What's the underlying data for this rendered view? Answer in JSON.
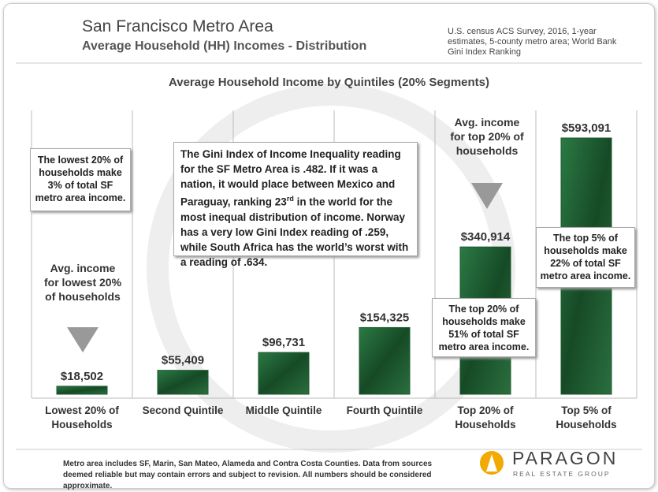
{
  "chart_data": {
    "type": "bar",
    "title": "San Francisco Metro Area",
    "subtitle": "Average Household (HH) Incomes - Distribution",
    "source": "U.S. census ACS Survey, 2016, 1-year estimates, 5-county metro area; World Bank Gini Index Ranking",
    "chart_title": "Average Household Income by Quintiles (20% Segments)",
    "categories": [
      "Lowest 20% of Households",
      "Second Quintile",
      "Middle Quintile",
      "Fourth Quintile",
      "Top 20% of Households",
      "Top 5% of Households"
    ],
    "values": [
      18502,
      55409,
      96731,
      154325,
      340914,
      593091
    ],
    "value_labels": [
      "$18,502",
      "$55,409",
      "$96,731",
      "$154,325",
      "$340,914",
      "$593,091"
    ],
    "color": "#1d5a30",
    "annotations": [
      "The lowest 20% of households make 3% of total SF metro area income.",
      "Avg. income for lowest 20% of households",
      "Avg. income for top 20% of households",
      "The top 20% of households make 51% of total SF metro area income.",
      "The top 5% of households make 22% of total SF metro area income."
    ],
    "gini_note": [
      "The Gini Index of Income Inequality reading for the SF Metro Area is .482. If it was a nation, it would place between Mexico and Paraguay, ranking 23",
      "rd",
      " in the world for the most inequal distribution of income.  Norway has a very low Gini Index reading of .259, while South Africa has the world’s worst with a reading of .634."
    ],
    "footer": "Metro area includes SF, Marin, San Mateo, Alameda and Contra Costa Counties. Data from sources deemed reliable but may contain errors and subject to revision. All numbers should be considered approximate.",
    "logo": "PARAGON",
    "logo_sub": "REAL ESTATE GROUP"
  }
}
